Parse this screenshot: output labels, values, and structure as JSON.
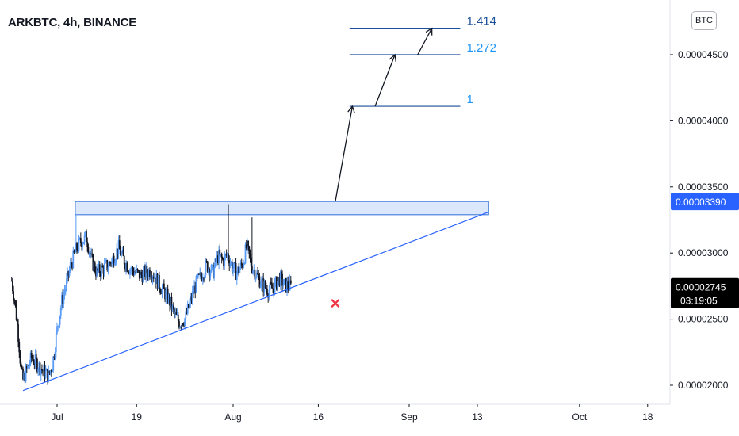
{
  "title": "ARKBTC, 4h, BINANCE",
  "currency_badge": "BTC",
  "colors": {
    "up": "#5b9cf6",
    "down": "#131722",
    "trend": "#2962ff",
    "zone_fill": "#dbe7fb",
    "zone_border": "#2f6fd9",
    "fib_line": "#1b4f9a",
    "fib_label_top": "#1b4f9a",
    "fib_label": "#2196f3",
    "marker": "#f23645"
  },
  "chart_data": {
    "type": "candlestick",
    "symbol": "ARKBTC",
    "interval": "4h",
    "exchange": "BINANCE",
    "ylim": [
      1.92e-05,
      4.74e-05
    ],
    "xlim_days": [
      -3,
      81
    ],
    "y_ticks": [
      "0.00002000",
      "0.00002500",
      "0.00003000",
      "0.00003500",
      "0.00004000",
      "0.00004500"
    ],
    "y_tick_values": [
      2e-05,
      2.5e-05,
      3e-05,
      3.5e-05,
      4e-05,
      4.5e-05
    ],
    "x_ticks": [
      {
        "label": "Jul",
        "day": 5
      },
      {
        "label": "19",
        "day": 19
      },
      {
        "label": "Aug",
        "day": 36
      },
      {
        "label": "16",
        "day": 51
      },
      {
        "label": "Sep",
        "day": 67
      },
      {
        "label": "13",
        "day": 79
      },
      {
        "label": "Oct",
        "day": 97
      },
      {
        "label": "18",
        "day": 109
      }
    ],
    "price_path": [
      [
        -3,
        2.79e-05
      ],
      [
        -2.4,
        2.62e-05
      ],
      [
        -1.8,
        2.37e-05
      ],
      [
        -1.3,
        2.09e-05
      ],
      [
        -1,
        2.04e-05
      ],
      [
        -0.3,
        2.12e-05
      ],
      [
        0.5,
        2.21e-05
      ],
      [
        1.5,
        2.16e-05
      ],
      [
        2.5,
        2.11e-05
      ],
      [
        3.5,
        2.07e-05
      ],
      [
        4.2,
        2.16e-05
      ],
      [
        5,
        2.42e-05
      ],
      [
        5.8,
        2.63e-05
      ],
      [
        6.6,
        2.76e-05
      ],
      [
        7.4,
        2.91e-05
      ],
      [
        8.4,
        3.03e-05
      ],
      [
        9.2,
        3.09e-05
      ],
      [
        10.2,
        3.12e-05
      ],
      [
        11,
        2.95e-05
      ],
      [
        12,
        2.85e-05
      ],
      [
        13,
        2.88e-05
      ],
      [
        14,
        2.91e-05
      ],
      [
        15,
        2.97e-05
      ],
      [
        15.8,
        3.04e-05
      ],
      [
        16.6,
        2.96e-05
      ],
      [
        17.6,
        2.89e-05
      ],
      [
        18.6,
        2.86e-05
      ],
      [
        19.6,
        2.83e-05
      ],
      [
        20.6,
        2.85e-05
      ],
      [
        21.6,
        2.87e-05
      ],
      [
        22.6,
        2.79e-05
      ],
      [
        23.6,
        2.72e-05
      ],
      [
        24.6,
        2.66e-05
      ],
      [
        25.6,
        2.54e-05
      ],
      [
        26.6,
        2.47e-05
      ],
      [
        27.6,
        2.51e-05
      ],
      [
        28.4,
        2.62e-05
      ],
      [
        29.4,
        2.76e-05
      ],
      [
        30.4,
        2.83e-05
      ],
      [
        31.4,
        2.91e-05
      ],
      [
        32.4,
        2.85e-05
      ],
      [
        33.4,
        2.98e-05
      ],
      [
        34.2,
        2.94e-05
      ],
      [
        35,
        2.99e-05
      ],
      [
        35.8,
        2.9e-05
      ],
      [
        36.6,
        2.85e-05
      ],
      [
        37.6,
        2.91e-05
      ],
      [
        38.4,
        3.05e-05
      ],
      [
        39.2,
        2.91e-05
      ],
      [
        40.2,
        2.83e-05
      ],
      [
        41.2,
        2.76e-05
      ],
      [
        42.2,
        2.72e-05
      ],
      [
        43.2,
        2.74e-05
      ],
      [
        44.2,
        2.81e-05
      ],
      [
        45,
        2.76e-05
      ],
      [
        46.2,
        2.74e-05
      ]
    ],
    "wick_spikes": [
      {
        "day": 8.4,
        "high": 3.29e-05
      },
      {
        "day": 15.8,
        "high": 3.13e-05
      },
      {
        "day": 35.1,
        "high": 3.37e-05
      },
      {
        "day": 39.3,
        "high": 3.27e-05
      }
    ],
    "resistance_zone": {
      "day_start": 8.2,
      "day_end": 81,
      "low": 3.29e-05,
      "high": 3.39e-05
    },
    "trendline": {
      "start": {
        "day": -1,
        "price": 1.96e-05
      },
      "end": {
        "day": 81,
        "price": 3.31e-05
      }
    },
    "fib_levels": [
      {
        "label": "1",
        "price": 4.11e-05
      },
      {
        "label": "1.272",
        "price": 4.5e-05
      },
      {
        "label": "1.414",
        "price": 4.7e-05
      }
    ],
    "fib_day_start": 56.5,
    "fib_day_end": 76,
    "projection_arrows": [
      {
        "from": {
          "day": 54,
          "price": 3.39e-05
        },
        "to": {
          "day": 57,
          "price": 4.11e-05
        }
      },
      {
        "from": {
          "day": 61,
          "price": 4.11e-05
        },
        "to": {
          "day": 64.5,
          "price": 4.5e-05
        }
      },
      {
        "from": {
          "day": 68.5,
          "price": 4.5e-05
        },
        "to": {
          "day": 71,
          "price": 4.7e-05
        }
      }
    ],
    "invalidation_marker": {
      "day": 54,
      "price": 2.62e-05
    },
    "price_labels": [
      {
        "text": "0.00003390",
        "sub": "",
        "price": 3.39e-05,
        "style": "blue"
      },
      {
        "text": "0.00002745",
        "sub": "03:19:05",
        "price": 2.745e-05,
        "style": "dark"
      }
    ]
  }
}
